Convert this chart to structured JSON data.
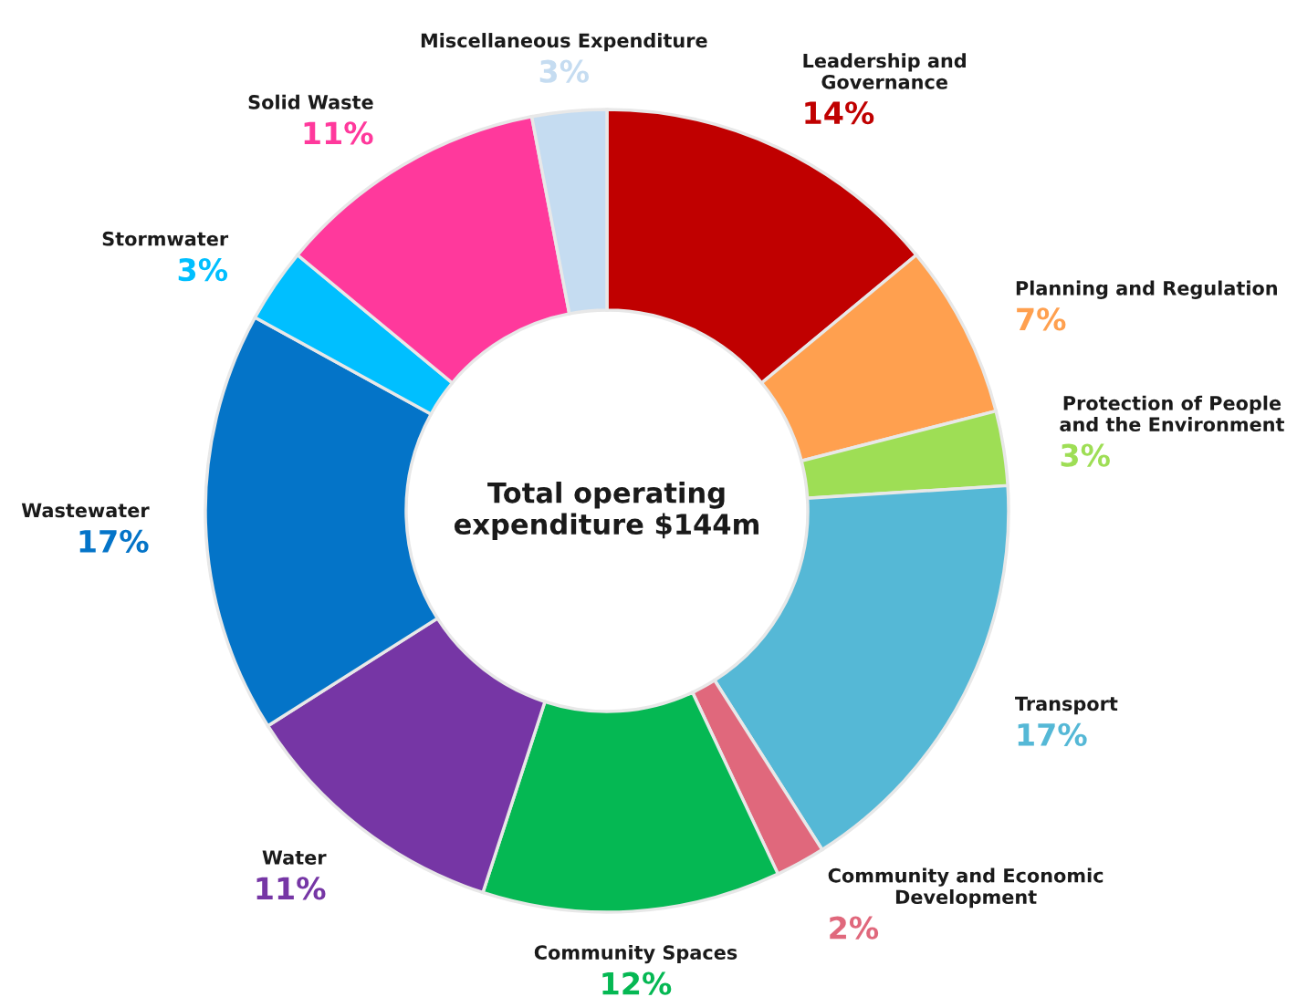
{
  "chart_data": {
    "type": "donut",
    "categories": [
      "Leadership and\nGovernance",
      "Planning and Regulation",
      "Protection of People\nand the Environment",
      "Transport",
      "Community and Economic\nDevelopment",
      "Community Spaces",
      "Water",
      "Wastewater",
      "Stormwater",
      "Solid Waste",
      "Miscellaneous Expenditure"
    ],
    "values": [
      14,
      7,
      3,
      17,
      2,
      12,
      11,
      17,
      3,
      11,
      3
    ],
    "value_labels": [
      "14%",
      "7%",
      "3%",
      "17%",
      "2%",
      "12%",
      "11%",
      "17%",
      "3%",
      "11%",
      "3%"
    ],
    "colors": [
      "#c00000",
      "#ffa04f",
      "#9ede55",
      "#55b8d6",
      "#e0687c",
      "#05b853",
      "#7636a5",
      "#0474c8",
      "#00bfff",
      "#ff399c",
      "#c5dcf1"
    ],
    "annotations": [
      "Total operating\nexpenditure $144m"
    ],
    "legend": false
  }
}
